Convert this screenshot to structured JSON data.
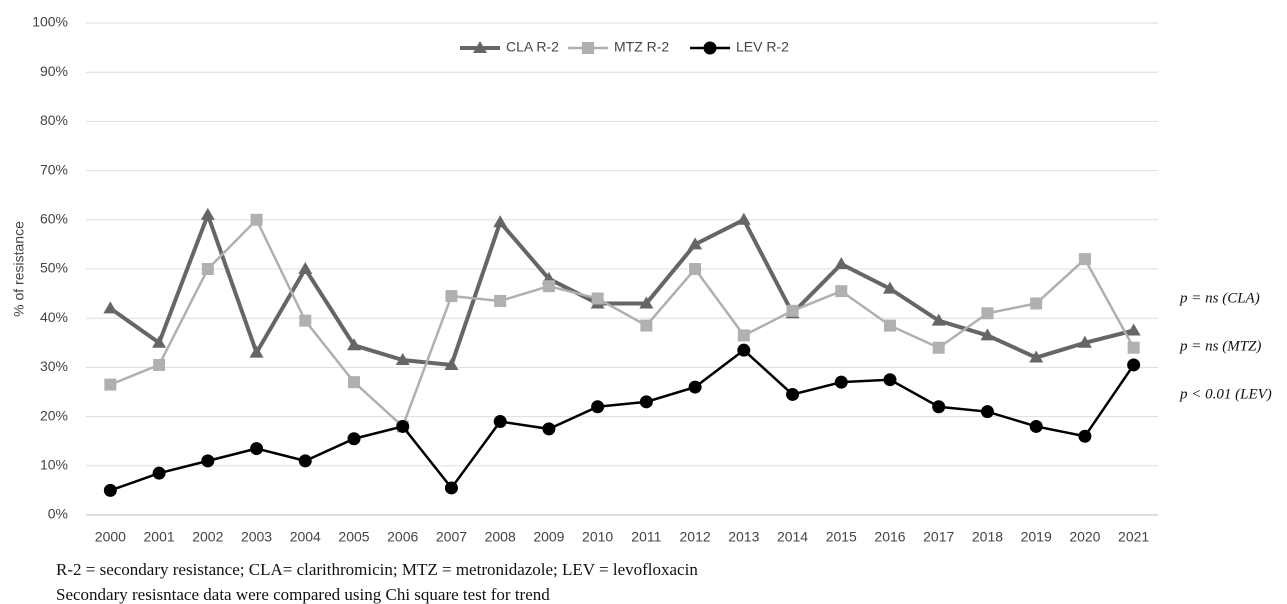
{
  "chart_data": {
    "type": "line",
    "y_label": "% of resistance",
    "categories": [
      "2000",
      "2001",
      "2002",
      "2003",
      "2004",
      "2005",
      "2006",
      "2007",
      "2008",
      "2009",
      "2010",
      "2011",
      "2012",
      "2013",
      "2014",
      "2015",
      "2016",
      "2017",
      "2018",
      "2019",
      "2020",
      "2021"
    ],
    "series": [
      {
        "name": "CLA R-2",
        "color": "#666666",
        "marker": "triangle",
        "values": [
          42,
          35,
          61,
          33,
          50,
          34.5,
          31.5,
          30.5,
          59.5,
          48,
          43,
          43,
          55,
          60,
          41,
          51,
          46,
          39.5,
          36.5,
          32,
          35,
          37.5
        ]
      },
      {
        "name": "MTZ R-2",
        "color": "#b0b0b0",
        "marker": "square",
        "values": [
          26.5,
          30.5,
          50,
          60,
          39.5,
          27,
          18,
          44.5,
          43.5,
          46.5,
          44,
          38.5,
          50,
          36.5,
          41.5,
          45.5,
          38.5,
          34,
          41,
          43,
          52,
          34
        ]
      },
      {
        "name": "LEV R-2",
        "color": "#000000",
        "marker": "circle",
        "values": [
          5,
          8.5,
          11,
          13.5,
          11,
          15.5,
          18,
          5.5,
          19,
          17.5,
          22,
          23,
          26,
          33.5,
          24.5,
          27,
          27.5,
          22,
          21,
          18,
          16,
          30.5
        ]
      }
    ],
    "ylim": [
      0,
      100
    ],
    "yticks": [
      {
        "value": 0,
        "label": "0%"
      },
      {
        "value": 10,
        "label": "10%"
      },
      {
        "value": 20,
        "label": "20%"
      },
      {
        "value": 30,
        "label": "30%"
      },
      {
        "value": 40,
        "label": "40%"
      },
      {
        "value": 50,
        "label": "50%"
      },
      {
        "value": 60,
        "label": "60%"
      },
      {
        "value": 70,
        "label": "70%"
      },
      {
        "value": 80,
        "label": "80%"
      },
      {
        "value": 90,
        "label": "90%"
      },
      {
        "value": 100,
        "label": "100%"
      }
    ],
    "grid": true,
    "legend": "top",
    "annotations": [
      "p = ns (CLA)",
      "p = ns (MTZ)",
      "p < 0.01 (LEV)"
    ],
    "footnotes": [
      "R-2 = secondary resistance; CLA= clarithromicin; MTZ = metronidazole; LEV = levofloxacin",
      "Secondary resisntace data were compared using Chi square test for trend"
    ]
  }
}
